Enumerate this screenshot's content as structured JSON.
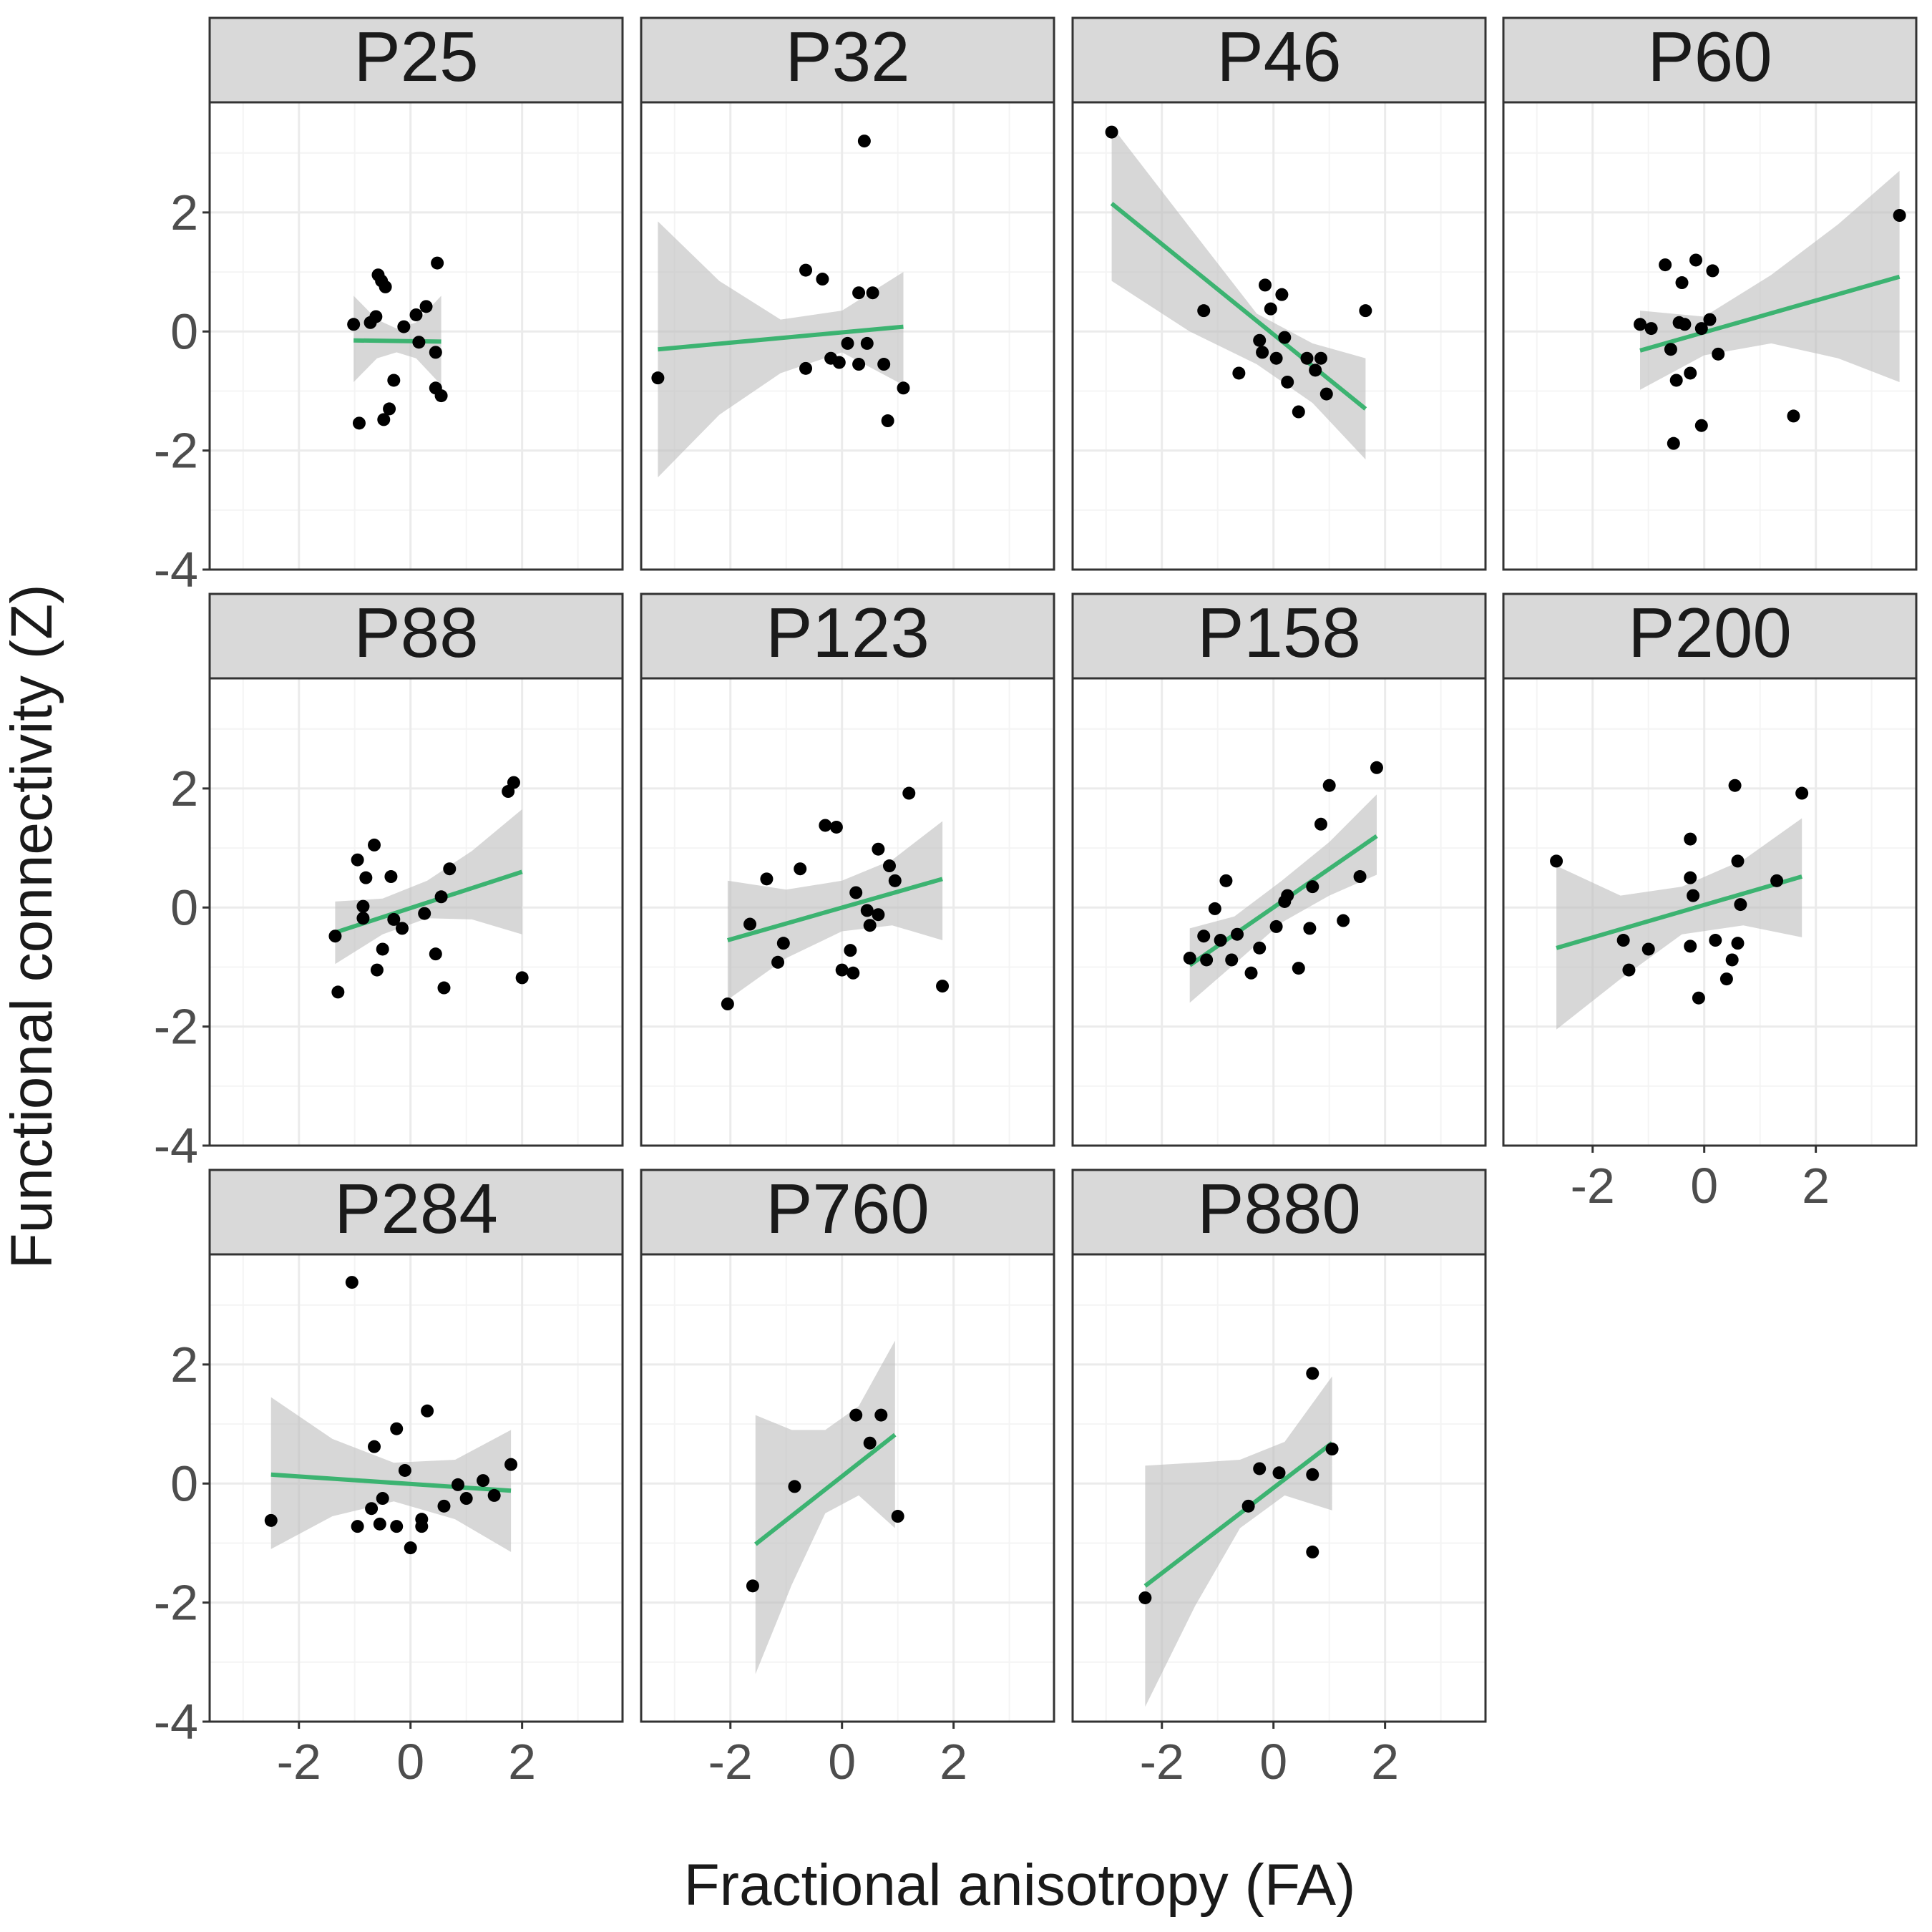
{
  "chart_data": {
    "type": "scatter",
    "title": "",
    "xlabel": "Fractional anisotropy (FA)",
    "ylabel": "Functional connectivity (Z)",
    "xlim": [
      -3.6,
      3.8
    ],
    "ylim": [
      -4.0,
      3.85
    ],
    "xticks": [
      "-2",
      "0",
      "2"
    ],
    "yticks": [
      "-4",
      "-2",
      "0",
      "2"
    ],
    "grid": true,
    "colors": {
      "points": "#000000",
      "fit_line": "#3cb371",
      "ribbon": "#bebebe",
      "strip_fill": "#d9d9d9",
      "grid_major": "#ebebeb",
      "grid_minor": "#f4f4f4",
      "panel_border": "#333333",
      "tick_text": "#4d4d4d"
    },
    "panels": [
      {
        "label": "P25",
        "points": [
          [
            -1.02,
            0.12
          ],
          [
            -0.92,
            -1.54
          ],
          [
            -0.72,
            0.15
          ],
          [
            -0.62,
            0.25
          ],
          [
            -0.58,
            0.95
          ],
          [
            -0.52,
            0.85
          ],
          [
            -0.48,
            -1.48
          ],
          [
            -0.45,
            0.75
          ],
          [
            -0.38,
            -1.3
          ],
          [
            -0.3,
            -0.82
          ],
          [
            -0.12,
            0.08
          ],
          [
            0.1,
            0.28
          ],
          [
            0.15,
            -0.18
          ],
          [
            0.28,
            0.42
          ],
          [
            0.45,
            -0.35
          ],
          [
            0.45,
            -0.95
          ],
          [
            0.48,
            1.15
          ],
          [
            0.55,
            -1.08
          ]
        ],
        "fit": {
          "x": [
            -1.02,
            0.55
          ],
          "y": [
            -0.15,
            -0.17
          ]
        },
        "band": {
          "x": [
            -1.02,
            -0.6,
            -0.25,
            0.1,
            0.55
          ],
          "lower": [
            -0.85,
            -0.45,
            -0.35,
            -0.45,
            -0.9
          ],
          "upper": [
            0.6,
            0.2,
            0.05,
            0.15,
            0.6
          ]
        }
      },
      {
        "label": "P32",
        "points": [
          [
            -3.3,
            -0.78
          ],
          [
            -0.65,
            1.03
          ],
          [
            -0.65,
            -0.62
          ],
          [
            -0.35,
            0.88
          ],
          [
            -0.2,
            -0.45
          ],
          [
            -0.05,
            -0.52
          ],
          [
            0.1,
            -0.2
          ],
          [
            0.3,
            0.65
          ],
          [
            0.3,
            -0.55
          ],
          [
            0.4,
            3.2
          ],
          [
            0.45,
            -0.2
          ],
          [
            0.55,
            0.65
          ],
          [
            0.75,
            -0.55
          ],
          [
            0.82,
            -1.5
          ],
          [
            1.1,
            -0.95
          ]
        ],
        "fit": {
          "x": [
            -3.3,
            1.1
          ],
          "y": [
            -0.3,
            0.08
          ]
        },
        "band": {
          "x": [
            -3.3,
            -2.2,
            -1.1,
            0.0,
            1.1
          ],
          "lower": [
            -2.45,
            -1.4,
            -0.7,
            -0.35,
            -0.9
          ],
          "upper": [
            1.85,
            0.85,
            0.2,
            0.35,
            1.0
          ]
        }
      },
      {
        "label": "P46",
        "points": [
          [
            -2.9,
            3.35
          ],
          [
            -1.25,
            0.35
          ],
          [
            -0.62,
            -0.7
          ],
          [
            -0.25,
            -0.15
          ],
          [
            -0.2,
            -0.35
          ],
          [
            -0.15,
            0.78
          ],
          [
            -0.05,
            0.38
          ],
          [
            0.05,
            -0.45
          ],
          [
            0.15,
            0.62
          ],
          [
            0.2,
            -0.1
          ],
          [
            0.25,
            -0.85
          ],
          [
            0.45,
            -1.35
          ],
          [
            0.6,
            -0.45
          ],
          [
            0.75,
            -0.65
          ],
          [
            0.85,
            -0.45
          ],
          [
            0.95,
            -1.05
          ],
          [
            1.65,
            0.35
          ]
        ],
        "fit": {
          "x": [
            -2.9,
            1.65
          ],
          "y": [
            2.15,
            -1.3
          ]
        },
        "band": {
          "x": [
            -2.9,
            -1.5,
            -0.3,
            0.7,
            1.65
          ],
          "lower": [
            0.85,
            0.0,
            -0.55,
            -1.2,
            -2.15
          ],
          "upper": [
            3.45,
            1.75,
            0.3,
            -0.2,
            -0.45
          ]
        }
      },
      {
        "label": "P60",
        "points": [
          [
            -1.15,
            0.12
          ],
          [
            -0.95,
            0.05
          ],
          [
            -0.7,
            1.12
          ],
          [
            -0.6,
            -0.3
          ],
          [
            -0.55,
            -1.88
          ],
          [
            -0.5,
            -0.82
          ],
          [
            -0.45,
            0.15
          ],
          [
            -0.4,
            0.82
          ],
          [
            -0.35,
            0.12
          ],
          [
            -0.25,
            -0.7
          ],
          [
            -0.15,
            1.2
          ],
          [
            -0.05,
            -1.58
          ],
          [
            -0.05,
            0.05
          ],
          [
            0.1,
            0.2
          ],
          [
            0.15,
            1.02
          ],
          [
            0.25,
            -0.38
          ],
          [
            1.6,
            -1.42
          ],
          [
            3.5,
            1.95
          ]
        ],
        "fit": {
          "x": [
            -1.15,
            3.5
          ],
          "y": [
            -0.32,
            0.92
          ]
        },
        "band": {
          "x": [
            -1.15,
            0.0,
            1.2,
            2.4,
            3.5
          ],
          "lower": [
            -0.98,
            -0.4,
            -0.2,
            -0.45,
            -0.85
          ],
          "upper": [
            0.35,
            0.25,
            0.95,
            1.8,
            2.7
          ]
        }
      },
      {
        "label": "P88",
        "points": [
          [
            -1.35,
            -0.48
          ],
          [
            -1.3,
            -1.42
          ],
          [
            -0.95,
            0.8
          ],
          [
            -0.85,
            0.02
          ],
          [
            -0.85,
            -0.18
          ],
          [
            -0.8,
            0.5
          ],
          [
            -0.65,
            1.05
          ],
          [
            -0.6,
            -1.05
          ],
          [
            -0.5,
            -0.7
          ],
          [
            -0.35,
            0.52
          ],
          [
            -0.3,
            -0.2
          ],
          [
            -0.15,
            -0.35
          ],
          [
            0.25,
            -0.1
          ],
          [
            0.45,
            -0.78
          ],
          [
            0.55,
            0.18
          ],
          [
            0.6,
            -1.35
          ],
          [
            0.7,
            0.65
          ],
          [
            1.75,
            1.95
          ],
          [
            1.85,
            2.1
          ],
          [
            2.0,
            -1.18
          ]
        ],
        "fit": {
          "x": [
            -1.35,
            2.0
          ],
          "y": [
            -0.42,
            0.6
          ]
        },
        "band": {
          "x": [
            -1.35,
            -0.5,
            0.3,
            1.1,
            2.0
          ],
          "lower": [
            -0.95,
            -0.45,
            -0.18,
            -0.2,
            -0.45
          ],
          "upper": [
            0.1,
            0.15,
            0.45,
            0.95,
            1.65
          ]
        }
      },
      {
        "label": "P123",
        "points": [
          [
            -2.05,
            -1.62
          ],
          [
            -1.65,
            -0.28
          ],
          [
            -1.35,
            0.48
          ],
          [
            -1.15,
            -0.92
          ],
          [
            -1.05,
            -0.6
          ],
          [
            -0.75,
            0.65
          ],
          [
            -0.3,
            1.38
          ],
          [
            -0.1,
            1.35
          ],
          [
            0.0,
            -1.05
          ],
          [
            0.15,
            -0.72
          ],
          [
            0.2,
            -1.1
          ],
          [
            0.25,
            0.25
          ],
          [
            0.45,
            -0.05
          ],
          [
            0.5,
            -0.3
          ],
          [
            0.65,
            -0.12
          ],
          [
            0.65,
            0.98
          ],
          [
            0.85,
            0.7
          ],
          [
            0.95,
            0.45
          ],
          [
            1.2,
            1.92
          ],
          [
            1.8,
            -1.32
          ]
        ],
        "fit": {
          "x": [
            -2.05,
            1.8
          ],
          "y": [
            -0.55,
            0.48
          ]
        },
        "band": {
          "x": [
            -2.05,
            -1.0,
            0.0,
            0.9,
            1.8
          ],
          "lower": [
            -1.55,
            -0.85,
            -0.4,
            -0.3,
            -0.55
          ],
          "upper": [
            0.45,
            0.3,
            0.45,
            0.8,
            1.45
          ]
        }
      },
      {
        "label": "P158",
        "points": [
          [
            -1.5,
            -0.85
          ],
          [
            -1.25,
            -0.48
          ],
          [
            -1.2,
            -0.88
          ],
          [
            -1.05,
            -0.02
          ],
          [
            -0.95,
            -0.55
          ],
          [
            -0.85,
            0.45
          ],
          [
            -0.75,
            -0.88
          ],
          [
            -0.65,
            -0.45
          ],
          [
            -0.4,
            -1.1
          ],
          [
            -0.25,
            -0.68
          ],
          [
            0.05,
            -0.32
          ],
          [
            0.2,
            0.1
          ],
          [
            0.25,
            0.2
          ],
          [
            0.45,
            -1.02
          ],
          [
            0.65,
            -0.35
          ],
          [
            0.7,
            0.35
          ],
          [
            0.85,
            1.4
          ],
          [
            1.0,
            2.05
          ],
          [
            1.25,
            -0.22
          ],
          [
            1.55,
            0.52
          ],
          [
            1.85,
            2.35
          ]
        ],
        "fit": {
          "x": [
            -1.5,
            1.85
          ],
          "y": [
            -0.97,
            1.2
          ]
        },
        "band": {
          "x": [
            -1.5,
            -0.7,
            0.15,
            1.0,
            1.85
          ],
          "lower": [
            -1.6,
            -0.95,
            -0.25,
            0.2,
            0.55
          ],
          "upper": [
            -0.35,
            -0.15,
            0.45,
            1.1,
            1.9
          ]
        }
      },
      {
        "label": "P200",
        "points": [
          [
            -2.65,
            0.78
          ],
          [
            -1.45,
            -0.55
          ],
          [
            -1.35,
            -1.05
          ],
          [
            -1.0,
            -0.7
          ],
          [
            -0.25,
            1.15
          ],
          [
            -0.25,
            0.5
          ],
          [
            -0.25,
            -0.65
          ],
          [
            -0.2,
            0.2
          ],
          [
            -0.1,
            -1.52
          ],
          [
            0.2,
            -0.55
          ],
          [
            0.4,
            -1.2
          ],
          [
            0.5,
            -0.88
          ],
          [
            0.55,
            2.05
          ],
          [
            0.6,
            0.78
          ],
          [
            0.6,
            -0.6
          ],
          [
            0.65,
            0.05
          ],
          [
            1.3,
            0.45
          ],
          [
            1.75,
            1.92
          ]
        ],
        "fit": {
          "x": [
            -2.65,
            1.75
          ],
          "y": [
            -0.68,
            0.52
          ]
        },
        "band": {
          "x": [
            -2.65,
            -1.5,
            -0.4,
            0.7,
            1.75
          ],
          "lower": [
            -2.05,
            -1.2,
            -0.45,
            -0.3,
            -0.5
          ],
          "upper": [
            0.7,
            0.2,
            0.35,
            0.8,
            1.5
          ]
        }
      },
      {
        "label": "P284",
        "points": [
          [
            -2.5,
            -0.62
          ],
          [
            -1.05,
            3.38
          ],
          [
            -0.95,
            -0.72
          ],
          [
            -0.65,
            0.62
          ],
          [
            -0.7,
            -0.42
          ],
          [
            -0.55,
            -0.68
          ],
          [
            -0.5,
            -0.25
          ],
          [
            -0.25,
            0.92
          ],
          [
            -0.25,
            -0.72
          ],
          [
            -0.1,
            0.22
          ],
          [
            0.0,
            -1.08
          ],
          [
            0.2,
            -0.72
          ],
          [
            0.2,
            -0.6
          ],
          [
            0.3,
            1.22
          ],
          [
            0.6,
            -0.38
          ],
          [
            0.85,
            -0.02
          ],
          [
            1.0,
            -0.25
          ],
          [
            1.3,
            0.05
          ],
          [
            1.5,
            -0.2
          ],
          [
            1.8,
            0.32
          ]
        ],
        "fit": {
          "x": [
            -2.5,
            1.8
          ],
          "y": [
            0.15,
            -0.12
          ]
        },
        "band": {
          "x": [
            -2.5,
            -1.4,
            -0.3,
            0.8,
            1.8
          ],
          "lower": [
            -1.1,
            -0.55,
            -0.3,
            -0.6,
            -1.15
          ],
          "upper": [
            1.45,
            0.75,
            0.35,
            0.4,
            0.9
          ]
        }
      },
      {
        "label": "P760",
        "points": [
          [
            -1.6,
            -1.72
          ],
          [
            -0.85,
            -0.05
          ],
          [
            0.25,
            1.15
          ],
          [
            0.5,
            0.68
          ],
          [
            0.7,
            1.15
          ],
          [
            1.0,
            -0.55
          ]
        ],
        "fit": {
          "x": [
            -1.55,
            0.95
          ],
          "y": [
            -1.02,
            0.82
          ]
        },
        "band": {
          "x": [
            -1.55,
            -0.9,
            -0.3,
            0.3,
            0.95
          ],
          "lower": [
            -3.2,
            -1.7,
            -0.5,
            -0.2,
            -0.75
          ],
          "upper": [
            1.15,
            0.9,
            0.9,
            1.3,
            2.4
          ]
        }
      },
      {
        "label": "P880",
        "points": [
          [
            -2.3,
            -1.92
          ],
          [
            -0.45,
            -0.38
          ],
          [
            -0.25,
            0.25
          ],
          [
            0.1,
            0.18
          ],
          [
            0.7,
            1.85
          ],
          [
            0.7,
            0.15
          ],
          [
            0.7,
            -1.15
          ],
          [
            1.05,
            0.58
          ]
        ],
        "fit": {
          "x": [
            -2.3,
            1.05
          ],
          "y": [
            -1.72,
            0.68
          ]
        },
        "band": {
          "x": [
            -2.3,
            -1.4,
            -0.6,
            0.2,
            1.05
          ],
          "lower": [
            -3.75,
            -2.05,
            -0.75,
            -0.2,
            -0.45
          ],
          "upper": [
            0.3,
            0.35,
            0.4,
            0.7,
            1.8
          ]
        }
      }
    ]
  }
}
